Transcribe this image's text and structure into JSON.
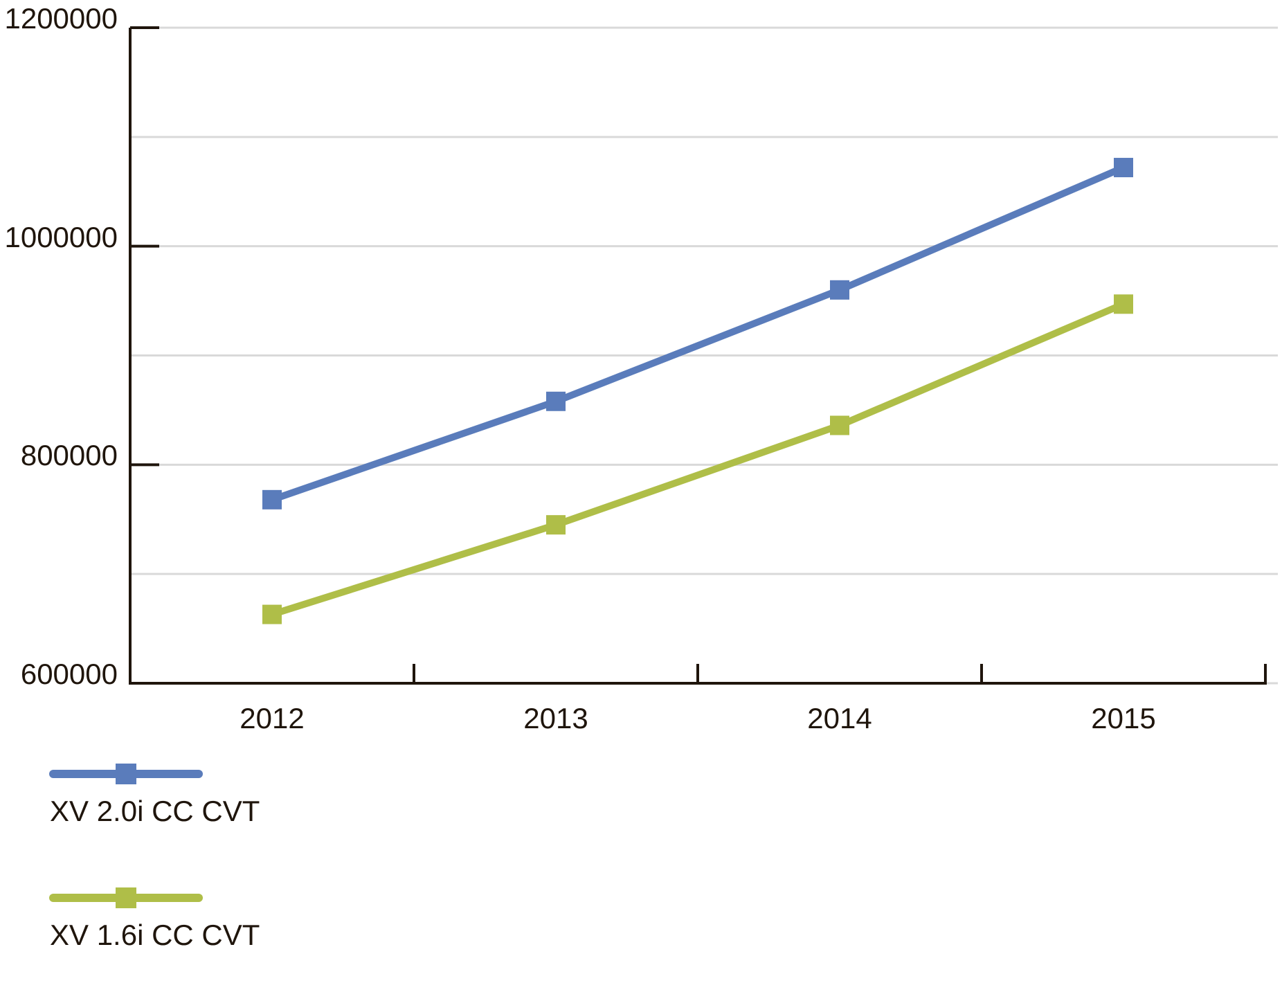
{
  "chart_data": {
    "type": "line",
    "categories": [
      "2012",
      "2013",
      "2014",
      "2015"
    ],
    "series": [
      {
        "name": "XV 2.0i CC CVT",
        "color": "#5A7CBB",
        "marker": "square",
        "values": [
          768000,
          858000,
          960000,
          1072000
        ]
      },
      {
        "name": "XV 1.6i CC CVT",
        "color": "#AFBE48",
        "marker": "square",
        "values": [
          663000,
          745000,
          836000,
          947000
        ]
      }
    ],
    "title": "",
    "xlabel": "",
    "ylabel": "",
    "ylim": [
      600000,
      1200000
    ],
    "y_labeled_ticks": [
      600000,
      800000,
      1000000,
      1200000
    ],
    "y_tick_labels": [
      "600000",
      "800000",
      "1000000",
      "1200000"
    ],
    "y_grid_step": 100000,
    "grid": "horizontal",
    "legend_position": "bottom-left"
  },
  "colors": {
    "background": "#FFFFFF",
    "axis": "#1F150C",
    "grid": "#D9D9D9",
    "text": "#1F150C"
  }
}
